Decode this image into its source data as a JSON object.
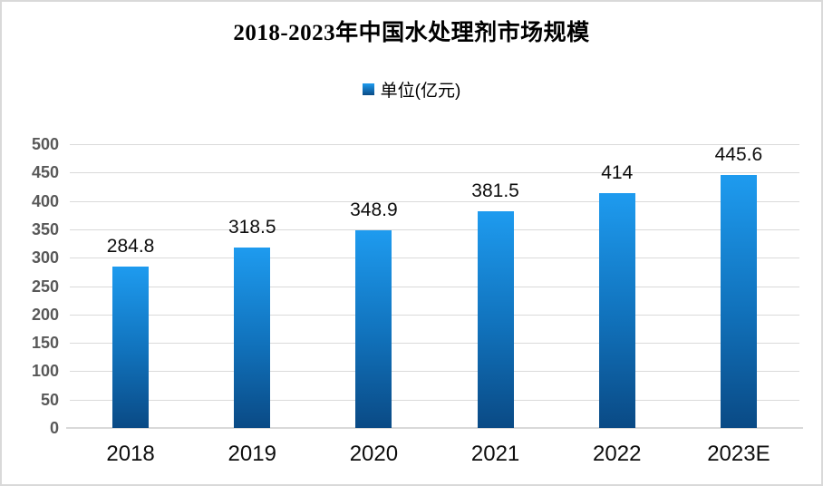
{
  "title": "2018-2023年中国水处理剂市场规模",
  "legend": {
    "label": "单位(亿元)"
  },
  "colors": {
    "bar_top": "#1e9bef",
    "bar_bottom": "#0a4a85",
    "gridline": "#dadada",
    "axis_line": "#d9d9d9",
    "ytick_text": "#595959",
    "label_text": "#0d0d0d"
  },
  "chart_data": {
    "type": "bar",
    "title": "2018-2023年中国水处理剂市场规模",
    "categories": [
      "2018",
      "2019",
      "2020",
      "2021",
      "2022",
      "2023E"
    ],
    "series": [
      {
        "name": "单位(亿元)",
        "values": [
          284.8,
          318.5,
          348.9,
          381.5,
          414,
          445.6
        ]
      }
    ],
    "data_labels": [
      "284.8",
      "318.5",
      "348.9",
      "381.5",
      "414",
      "445.6"
    ],
    "ylim": [
      0,
      500
    ],
    "yticks": [
      0,
      50,
      100,
      150,
      200,
      250,
      300,
      350,
      400,
      450,
      500
    ],
    "xlabel": "",
    "ylabel": "",
    "grid": true,
    "legend_position": "top"
  }
}
